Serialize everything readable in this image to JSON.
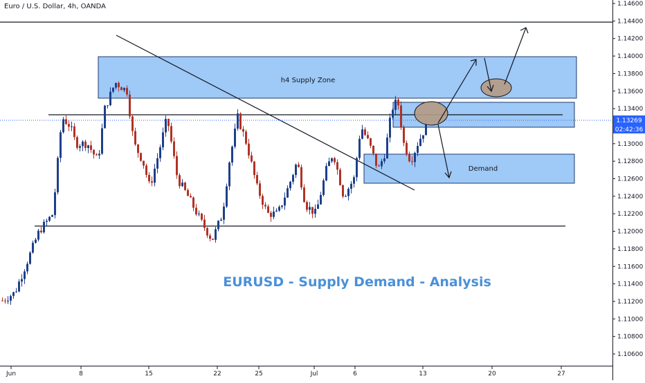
{
  "chart_data": {
    "type": "candlestick",
    "title": "Euro / U.S. Dollar, 4h, OANDA",
    "annotation_title": "EURUSD - Supply Demand - Analysis",
    "ylim": [
      1.105,
      1.147
    ],
    "y_ticks": [
      "1.14600",
      "1.14400",
      "1.14200",
      "1.14000",
      "1.13800",
      "1.13600",
      "1.13400",
      "1.13200",
      "1.13000",
      "1.12800",
      "1.12600",
      "1.12400",
      "1.12200",
      "1.12000",
      "1.11800",
      "1.11600",
      "1.11400",
      "1.11200",
      "1.11000",
      "1.10800",
      "1.10600"
    ],
    "x_ticks": [
      "Jun",
      "8",
      "15",
      "22",
      "25",
      "Jul",
      "6",
      "13",
      "20",
      "27"
    ],
    "current_price": "1.13269",
    "countdown": "02:42:36",
    "zones": [
      {
        "label": "h4 Supply Zone",
        "price_top": 1.14,
        "price_bottom": 1.1352
      },
      {
        "label": "",
        "price_top": 1.1347,
        "price_bottom": 1.1318
      },
      {
        "label": "Demand",
        "price_top": 1.1288,
        "price_bottom": 1.1256
      }
    ],
    "horizontal_levels": [
      1.144,
      1.1332,
      1.1206
    ],
    "colors": {
      "bull": "#1e3f8a",
      "bear": "#b03226",
      "zone_fill": "#8ec0f5",
      "zone_stroke": "#1f3b6e",
      "price_line": "#2962ff",
      "title": "#4a90d9",
      "ellipse": "#b59a84"
    },
    "grid": false
  }
}
